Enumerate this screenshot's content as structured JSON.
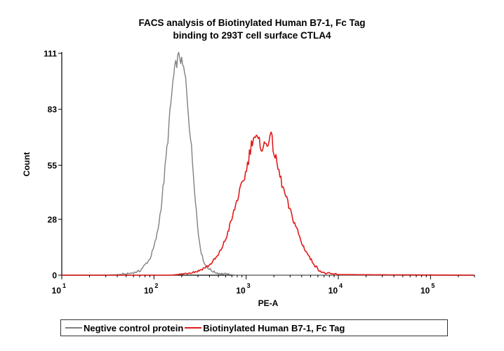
{
  "chart_data": {
    "type": "line",
    "title": [
      "FACS analysis of Biotinylated Human B7-1, Fc Tag",
      "binding to 293T cell surface CTLA4"
    ],
    "xlabel": "PE-A",
    "ylabel": "Count",
    "xscale": "log",
    "xlim": [
      10,
      300000
    ],
    "ylim": [
      0,
      111
    ],
    "xticks": [
      {
        "value": 10,
        "base": "10",
        "exp": "1"
      },
      {
        "value": 100,
        "base": "10",
        "exp": "2"
      },
      {
        "value": 1000,
        "base": "10",
        "exp": "3"
      },
      {
        "value": 10000,
        "base": "10",
        "exp": "4"
      },
      {
        "value": 100000,
        "base": "10",
        "exp": "5"
      }
    ],
    "yticks": [
      0,
      28,
      55,
      83,
      111
    ],
    "legend_position": "bottom",
    "series": [
      {
        "name": "Negtive control protein",
        "color": "#808080",
        "x": [
          10,
          30,
          50,
          70,
          90,
          100,
          110,
          120,
          130,
          140,
          150,
          160,
          170,
          180,
          190,
          200,
          210,
          220,
          230,
          250,
          280,
          300,
          330,
          360,
          400,
          450,
          500,
          600,
          800,
          1000,
          300000
        ],
        "y": [
          0,
          0,
          0.5,
          2,
          8,
          14,
          22,
          35,
          50,
          66,
          82,
          96,
          104,
          108,
          110,
          106,
          103,
          98,
          88,
          68,
          40,
          22,
          10,
          5,
          3,
          1.5,
          1,
          0.5,
          0,
          0,
          0
        ]
      },
      {
        "name": "Biotinylated Human B7-1, Fc Tag",
        "color": "#e11b1b",
        "x": [
          10,
          150,
          200,
          300,
          400,
          500,
          600,
          700,
          800,
          900,
          1000,
          1100,
          1200,
          1300,
          1500,
          1700,
          1800,
          1900,
          2000,
          2200,
          2500,
          3000,
          3500,
          4000,
          5000,
          6000,
          7000,
          10000,
          300000
        ],
        "y": [
          0,
          0,
          0.5,
          2,
          5,
          10,
          18,
          28,
          38,
          45,
          52,
          62,
          70,
          68,
          64,
          66,
          70,
          68,
          62,
          54,
          44,
          32,
          24,
          16,
          8,
          3,
          1,
          0.3,
          0
        ]
      }
    ]
  }
}
